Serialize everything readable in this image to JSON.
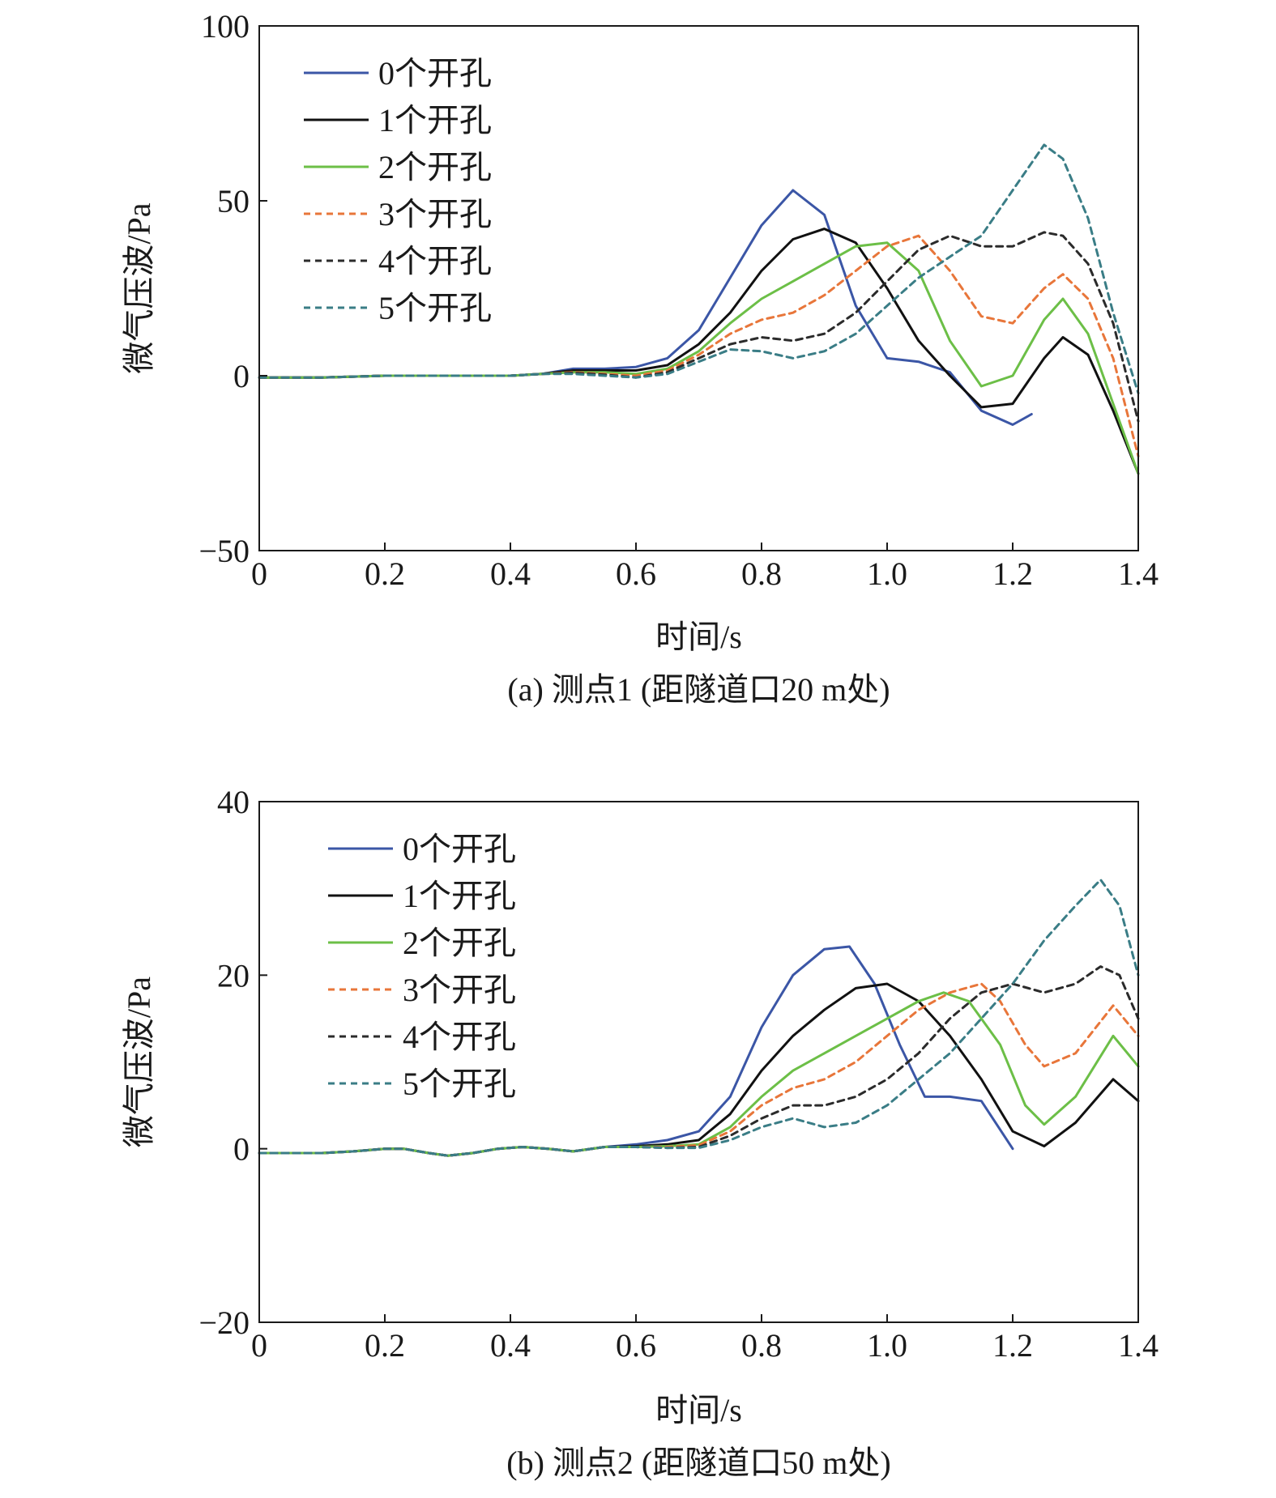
{
  "figure": {
    "captions": [
      "(a) 测点1 (距隧道口20 m处)",
      "(b) 测点2 (距隧道口50 m处)"
    ]
  },
  "colors": {
    "0个开孔": "#3b56a6",
    "1个开孔": "#111111",
    "2个开孔": "#6cbf47",
    "3个开孔": "#e8763a",
    "4个开孔": "#2b2b2b",
    "5个开孔": "#3a7d86"
  },
  "chart_data": [
    {
      "type": "line",
      "caption": "(a) 测点1 (距隧道口20 m处)",
      "xlabel": "时间/s",
      "ylabel": "微气压波/Pa",
      "xlim": [
        0,
        1.4
      ],
      "ylim": [
        -50,
        100
      ],
      "xticks": [
        0,
        0.2,
        0.4,
        0.6,
        0.8,
        1.0,
        1.2,
        1.4
      ],
      "xtick_labels": [
        "0",
        "0.2",
        "0.4",
        "0.6",
        "0.8",
        "1.0",
        "1.2",
        "1.4"
      ],
      "yticks": [
        -50,
        0,
        50,
        100
      ],
      "ytick_labels": [
        "−50",
        "0",
        "50",
        "100"
      ],
      "grid": false,
      "legend_position": "top-left",
      "series": [
        {
          "name": "0个开孔",
          "style": "solid",
          "x": [
            0,
            0.1,
            0.2,
            0.3,
            0.4,
            0.45,
            0.5,
            0.55,
            0.6,
            0.65,
            0.7,
            0.75,
            0.8,
            0.85,
            0.9,
            0.95,
            1.0,
            1.05,
            1.1,
            1.15,
            1.2,
            1.23
          ],
          "y": [
            -0.5,
            -0.5,
            0,
            0,
            0,
            0.5,
            2,
            2,
            2.5,
            5,
            13,
            28,
            43,
            53,
            46,
            20,
            5,
            4,
            1,
            -10,
            -14,
            -11
          ]
        },
        {
          "name": "1个开孔",
          "style": "solid",
          "x": [
            0,
            0.1,
            0.2,
            0.3,
            0.4,
            0.45,
            0.5,
            0.55,
            0.6,
            0.65,
            0.7,
            0.75,
            0.8,
            0.85,
            0.9,
            0.95,
            1.0,
            1.05,
            1.1,
            1.15,
            1.2,
            1.25,
            1.28,
            1.32,
            1.36,
            1.4
          ],
          "y": [
            -0.5,
            -0.5,
            0,
            0,
            0,
            0.5,
            1.5,
            1.5,
            1.5,
            3,
            9,
            18,
            30,
            39,
            42,
            38,
            25,
            10,
            0,
            -9,
            -8,
            5,
            11,
            6,
            -10,
            -28
          ]
        },
        {
          "name": "2个开孔",
          "style": "solid",
          "x": [
            0,
            0.1,
            0.2,
            0.3,
            0.4,
            0.45,
            0.5,
            0.55,
            0.6,
            0.65,
            0.7,
            0.75,
            0.8,
            0.85,
            0.9,
            0.95,
            1.0,
            1.05,
            1.1,
            1.15,
            1.2,
            1.25,
            1.28,
            1.32,
            1.36,
            1.4
          ],
          "y": [
            -0.5,
            -0.5,
            0,
            0,
            0,
            0.5,
            1,
            1,
            0.5,
            2,
            7,
            15,
            22,
            27,
            32,
            37,
            38,
            30,
            10,
            -3,
            0,
            16,
            22,
            12,
            -8,
            -28
          ]
        },
        {
          "name": "3个开孔",
          "style": "dashed",
          "x": [
            0,
            0.1,
            0.2,
            0.3,
            0.4,
            0.45,
            0.5,
            0.55,
            0.6,
            0.65,
            0.7,
            0.75,
            0.8,
            0.85,
            0.9,
            0.95,
            1.0,
            1.05,
            1.1,
            1.15,
            1.2,
            1.25,
            1.28,
            1.32,
            1.36,
            1.4
          ],
          "y": [
            -0.5,
            -0.5,
            0,
            0,
            0,
            0.5,
            1,
            0.5,
            0,
            1.5,
            6,
            12,
            16,
            18,
            23,
            30,
            37,
            40,
            30,
            17,
            15,
            25,
            29,
            22,
            5,
            -23
          ]
        },
        {
          "name": "4个开孔",
          "style": "dashed",
          "x": [
            0,
            0.1,
            0.2,
            0.3,
            0.4,
            0.45,
            0.5,
            0.55,
            0.6,
            0.65,
            0.7,
            0.75,
            0.8,
            0.85,
            0.9,
            0.95,
            1.0,
            1.05,
            1.1,
            1.15,
            1.2,
            1.25,
            1.28,
            1.32,
            1.36,
            1.4
          ],
          "y": [
            -0.5,
            -0.5,
            0,
            0,
            0,
            0.5,
            0.8,
            0.3,
            -0.5,
            1,
            5,
            9,
            11,
            10,
            12,
            18,
            27,
            36,
            40,
            37,
            37,
            41,
            40,
            32,
            15,
            -13
          ]
        },
        {
          "name": "5个开孔",
          "style": "dashed",
          "x": [
            0,
            0.1,
            0.2,
            0.3,
            0.4,
            0.45,
            0.5,
            0.55,
            0.6,
            0.65,
            0.7,
            0.75,
            0.8,
            0.85,
            0.9,
            0.95,
            1.0,
            1.05,
            1.1,
            1.15,
            1.2,
            1.25,
            1.28,
            1.32,
            1.36,
            1.4
          ],
          "y": [
            -0.5,
            -0.5,
            0,
            0,
            0,
            0.5,
            0.5,
            0,
            -0.5,
            0.5,
            4,
            7.5,
            7,
            5,
            7,
            12,
            20,
            28,
            34,
            40,
            53,
            66,
            62,
            45,
            18,
            -5
          ]
        }
      ]
    },
    {
      "type": "line",
      "caption": "(b) 测点2 (距隧道口50 m处)",
      "xlabel": "时间/s",
      "ylabel": "微气压波/Pa",
      "xlim": [
        0,
        1.4
      ],
      "ylim": [
        -20,
        40
      ],
      "xticks": [
        0,
        0.2,
        0.4,
        0.6,
        0.8,
        1.0,
        1.2,
        1.4
      ],
      "xtick_labels": [
        "0",
        "0.2",
        "0.4",
        "0.6",
        "0.8",
        "1.0",
        "1.2",
        "1.4"
      ],
      "yticks": [
        -20,
        0,
        20,
        40
      ],
      "ytick_labels": [
        "−20",
        "0",
        "20",
        "40"
      ],
      "grid": false,
      "legend_position": "top-left",
      "series": [
        {
          "name": "0个开孔",
          "style": "solid",
          "x": [
            0,
            0.05,
            0.1,
            0.15,
            0.2,
            0.23,
            0.27,
            0.3,
            0.34,
            0.38,
            0.42,
            0.46,
            0.5,
            0.55,
            0.6,
            0.65,
            0.7,
            0.75,
            0.8,
            0.85,
            0.9,
            0.94,
            0.98,
            1.02,
            1.06,
            1.1,
            1.15,
            1.2
          ],
          "y": [
            -0.5,
            -0.5,
            -0.5,
            -0.3,
            0,
            0,
            -0.5,
            -0.8,
            -0.5,
            0,
            0.2,
            0,
            -0.3,
            0.2,
            0.5,
            1,
            2,
            6,
            14,
            20,
            23,
            23.3,
            19,
            12,
            6,
            6,
            5.5,
            0
          ]
        },
        {
          "name": "1个开孔",
          "style": "solid",
          "x": [
            0,
            0.05,
            0.1,
            0.15,
            0.2,
            0.23,
            0.27,
            0.3,
            0.34,
            0.38,
            0.42,
            0.46,
            0.5,
            0.55,
            0.6,
            0.65,
            0.7,
            0.75,
            0.8,
            0.85,
            0.9,
            0.95,
            1.0,
            1.05,
            1.1,
            1.15,
            1.2,
            1.25,
            1.3,
            1.36,
            1.4
          ],
          "y": [
            -0.5,
            -0.5,
            -0.5,
            -0.3,
            0,
            0,
            -0.5,
            -0.8,
            -0.5,
            0,
            0.2,
            0,
            -0.3,
            0.2,
            0.3,
            0.5,
            1,
            4,
            9,
            13,
            16,
            18.5,
            19,
            17,
            13,
            8,
            2,
            0.3,
            3,
            8,
            5.5
          ]
        },
        {
          "name": "2个开孔",
          "style": "solid",
          "x": [
            0,
            0.05,
            0.1,
            0.15,
            0.2,
            0.23,
            0.27,
            0.3,
            0.34,
            0.38,
            0.42,
            0.46,
            0.5,
            0.55,
            0.6,
            0.65,
            0.7,
            0.75,
            0.8,
            0.85,
            0.9,
            0.95,
            1.0,
            1.05,
            1.09,
            1.13,
            1.18,
            1.22,
            1.25,
            1.3,
            1.36,
            1.4
          ],
          "y": [
            -0.5,
            -0.5,
            -0.5,
            -0.3,
            0,
            0,
            -0.5,
            -0.8,
            -0.5,
            0,
            0.2,
            0,
            -0.3,
            0.2,
            0.2,
            0.3,
            0.5,
            2.5,
            6,
            9,
            11,
            13,
            15,
            17,
            18,
            17,
            12,
            5,
            2.8,
            6,
            13,
            9.5
          ]
        },
        {
          "name": "3个开孔",
          "style": "dashed",
          "x": [
            0,
            0.05,
            0.1,
            0.15,
            0.2,
            0.23,
            0.27,
            0.3,
            0.34,
            0.38,
            0.42,
            0.46,
            0.5,
            0.55,
            0.6,
            0.65,
            0.7,
            0.75,
            0.8,
            0.85,
            0.9,
            0.95,
            1.0,
            1.05,
            1.1,
            1.15,
            1.18,
            1.22,
            1.25,
            1.3,
            1.36,
            1.4
          ],
          "y": [
            -0.5,
            -0.5,
            -0.5,
            -0.3,
            0,
            0,
            -0.5,
            -0.8,
            -0.5,
            0,
            0.2,
            0,
            -0.3,
            0.2,
            0.2,
            0.2,
            0.4,
            2,
            5,
            7,
            8,
            10,
            13,
            16,
            18,
            19,
            17,
            12,
            9.5,
            11,
            16.5,
            13
          ]
        },
        {
          "name": "4个开孔",
          "style": "dashed",
          "x": [
            0,
            0.05,
            0.1,
            0.15,
            0.2,
            0.23,
            0.27,
            0.3,
            0.34,
            0.38,
            0.42,
            0.46,
            0.5,
            0.55,
            0.6,
            0.65,
            0.7,
            0.75,
            0.8,
            0.85,
            0.9,
            0.95,
            1.0,
            1.05,
            1.1,
            1.15,
            1.2,
            1.25,
            1.3,
            1.34,
            1.37,
            1.4
          ],
          "y": [
            -0.5,
            -0.5,
            -0.5,
            -0.3,
            0,
            0,
            -0.5,
            -0.8,
            -0.5,
            0,
            0.2,
            0,
            -0.3,
            0.2,
            0.2,
            0.1,
            0.2,
            1.5,
            3.5,
            5,
            5,
            6,
            8,
            11,
            15,
            18,
            19,
            18,
            19,
            21,
            20,
            15
          ]
        },
        {
          "name": "5个开孔",
          "style": "dashed",
          "x": [
            0,
            0.05,
            0.1,
            0.15,
            0.2,
            0.23,
            0.27,
            0.3,
            0.34,
            0.38,
            0.42,
            0.46,
            0.5,
            0.55,
            0.6,
            0.65,
            0.7,
            0.75,
            0.8,
            0.85,
            0.9,
            0.95,
            1.0,
            1.05,
            1.1,
            1.15,
            1.2,
            1.25,
            1.3,
            1.34,
            1.37,
            1.4
          ],
          "y": [
            -0.5,
            -0.5,
            -0.5,
            -0.3,
            0,
            0,
            -0.5,
            -0.8,
            -0.5,
            0,
            0.2,
            0,
            -0.3,
            0.2,
            0.2,
            0.1,
            0.1,
            1,
            2.5,
            3.5,
            2.5,
            3,
            5,
            8,
            11,
            15,
            19,
            24,
            28,
            31,
            28,
            20
          ]
        }
      ]
    }
  ]
}
